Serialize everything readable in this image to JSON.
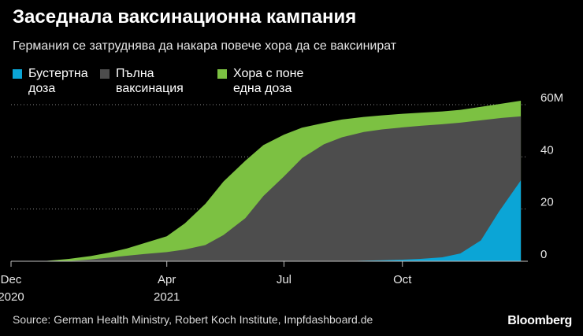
{
  "header": {
    "title": "Заседнала ваксинационна кампания",
    "subtitle": "Германия се затруднява да накара повече хора да се ваксинират"
  },
  "legend": [
    {
      "lines": [
        "Бустертна",
        "доза"
      ],
      "color": "#0ba5d6"
    },
    {
      "lines": [
        "Пълна",
        "ваксинация"
      ],
      "color": "#4d4d4d"
    },
    {
      "lines": [
        "Хора с поне",
        "една доза"
      ],
      "color": "#7cc142"
    }
  ],
  "footer": {
    "source": "Source: German Health Ministry, Robert Koch Institute, Impfdashboard.de",
    "brand": "Bloomberg"
  },
  "chart_data": {
    "type": "area",
    "title": "Заседнала ваксинационна кампания",
    "subtitle": "Германия се затруднява да накара повече хора да се ваксинират",
    "ylim": [
      0,
      60
    ],
    "y_ticks": [
      {
        "value": 0,
        "label": "0"
      },
      {
        "value": 20,
        "label": "20"
      },
      {
        "value": 40,
        "label": "40"
      },
      {
        "value": 60,
        "label": "60M"
      }
    ],
    "x_ticks": [
      {
        "date": "2020-12-01",
        "label": [
          "Dec",
          "2020"
        ]
      },
      {
        "date": "2021-04-01",
        "label": [
          "Apr",
          "2021"
        ]
      },
      {
        "date": "2021-07-01",
        "label": [
          "Jul"
        ]
      },
      {
        "date": "2021-10-01",
        "label": [
          "Oct"
        ]
      }
    ],
    "xlim": [
      "2020-12-01",
      "2022-01-04"
    ],
    "grid": "horizontal-dotted",
    "legend_position": "top-left",
    "x": [
      "2020-12-27",
      "2021-01-15",
      "2021-02-01",
      "2021-02-15",
      "2021-03-01",
      "2021-03-15",
      "2021-04-01",
      "2021-04-15",
      "2021-05-01",
      "2021-05-15",
      "2021-06-01",
      "2021-06-15",
      "2021-07-01",
      "2021-07-15",
      "2021-08-01",
      "2021-08-15",
      "2021-09-01",
      "2021-09-15",
      "2021-10-01",
      "2021-10-15",
      "2021-11-01",
      "2021-11-15",
      "2021-12-01",
      "2021-12-15",
      "2022-01-01"
    ],
    "series": [
      {
        "name": "Хора с поне една доза",
        "color": "#7cc142",
        "values": [
          0.1,
          0.9,
          2.0,
          3.3,
          4.9,
          7.0,
          9.6,
          14.5,
          22.0,
          30.5,
          38.5,
          44.5,
          48.5,
          51.2,
          53.0,
          54.3,
          55.3,
          55.9,
          56.5,
          56.9,
          57.4,
          58.0,
          59.2,
          60.2,
          61.5
        ]
      },
      {
        "name": "Пълна ваксинация",
        "color": "#4d4d4d",
        "values": [
          0.0,
          0.1,
          0.7,
          1.4,
          2.1,
          2.8,
          3.5,
          4.5,
          6.2,
          10.0,
          16.5,
          25.0,
          32.5,
          39.5,
          44.8,
          47.5,
          49.5,
          50.5,
          51.3,
          51.9,
          52.5,
          53.1,
          54.0,
          54.8,
          55.5
        ]
      },
      {
        "name": "Бустертна доза",
        "color": "#0ba5d6",
        "values": [
          0,
          0,
          0,
          0,
          0,
          0,
          0,
          0,
          0,
          0,
          0,
          0,
          0,
          0,
          0,
          0,
          0.2,
          0.4,
          0.6,
          0.9,
          1.5,
          3.0,
          8.0,
          19.0,
          31.0
        ]
      }
    ]
  }
}
